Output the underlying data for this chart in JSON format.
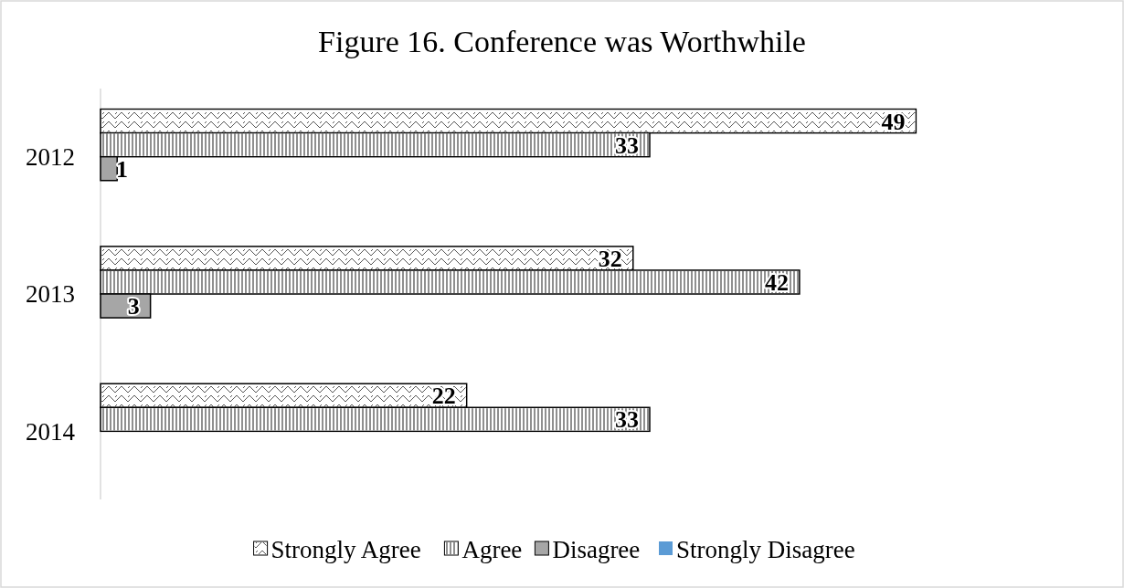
{
  "chart_data": {
    "type": "bar",
    "orientation": "horizontal",
    "title": "Figure 16.  Conference was Worthwhile",
    "categories": [
      "2012",
      "2013",
      "2014"
    ],
    "series": [
      {
        "name": "Strongly Agree",
        "color": "#ffffff",
        "values": [
          49,
          32,
          22
        ]
      },
      {
        "name": "Agree",
        "color": "#ffffff",
        "values": [
          33,
          42,
          33
        ]
      },
      {
        "name": "Disagree",
        "color": "#a6a6a6",
        "values": [
          1,
          3,
          null
        ]
      },
      {
        "name": "Strongly Disagree",
        "color": "#5b9bd5",
        "values": [
          null,
          null,
          null
        ]
      }
    ],
    "data_labels": true,
    "legend": "bottom",
    "tick_labels": "y"
  }
}
